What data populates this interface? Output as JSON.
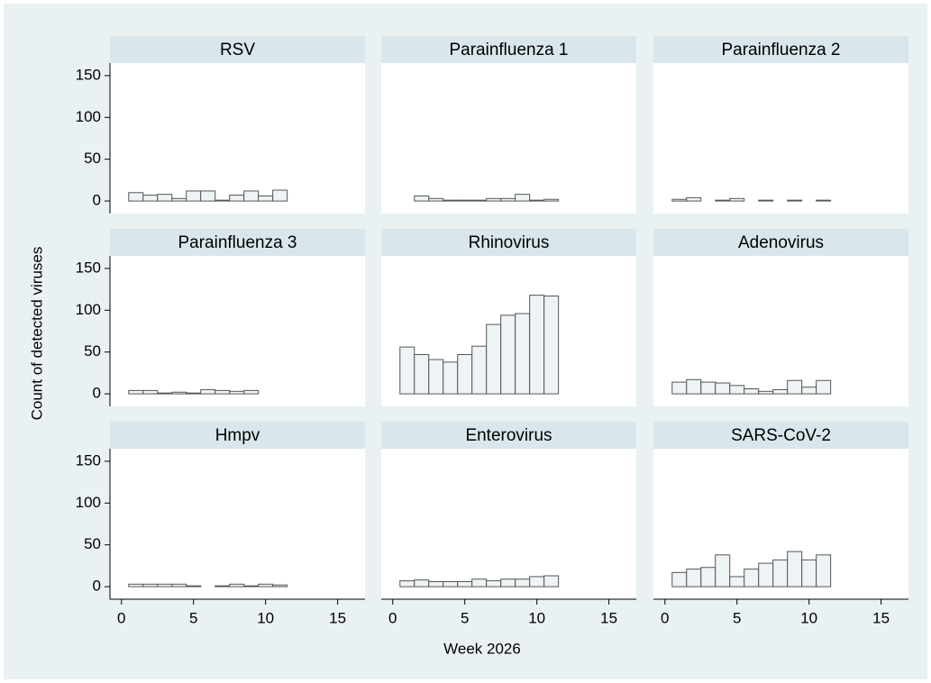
{
  "chart_data": {
    "type": "bar",
    "y_label": "Count of detected viruses",
    "x_label": "Week 2026",
    "x": [
      1,
      2,
      3,
      4,
      5,
      6,
      7,
      8,
      9,
      10,
      11
    ],
    "xlim": [
      -0.8,
      16.9
    ],
    "xticks": [
      0,
      5,
      10,
      15
    ],
    "ylim": [
      -15,
      165
    ],
    "yticks": [
      0,
      50,
      100,
      150
    ],
    "color": "#eef4f5",
    "panels": [
      {
        "title": "RSV",
        "values": [
          10,
          7,
          8,
          3,
          12,
          12,
          1,
          7,
          12,
          6,
          13
        ]
      },
      {
        "title": "Parainfluenza 1",
        "values": [
          null,
          6,
          3,
          1,
          1,
          1,
          3,
          3,
          8,
          1,
          2
        ]
      },
      {
        "title": "Parainfluenza 2",
        "values": [
          2,
          4,
          null,
          1,
          3,
          null,
          1,
          null,
          1,
          null,
          1
        ]
      },
      {
        "title": "Parainfluenza 3",
        "values": [
          4,
          4,
          1,
          2,
          1,
          5,
          4,
          3,
          4,
          null,
          null
        ]
      },
      {
        "title": "Rhinovirus",
        "values": [
          56,
          47,
          41,
          38,
          47,
          57,
          83,
          94,
          96,
          118,
          117
        ]
      },
      {
        "title": "Adenovirus",
        "values": [
          14,
          17,
          14,
          13,
          10,
          6,
          3,
          5,
          16,
          8,
          16
        ]
      },
      {
        "title": "Hmpv",
        "values": [
          3,
          3,
          3,
          3,
          1,
          null,
          1,
          3,
          1,
          3,
          2
        ]
      },
      {
        "title": "Enterovirus",
        "values": [
          7,
          8,
          6,
          6,
          6,
          9,
          7,
          9,
          9,
          12,
          13
        ]
      },
      {
        "title": "SARS-CoV-2",
        "values": [
          17,
          21,
          23,
          38,
          12,
          21,
          28,
          32,
          42,
          32,
          38
        ]
      }
    ]
  }
}
